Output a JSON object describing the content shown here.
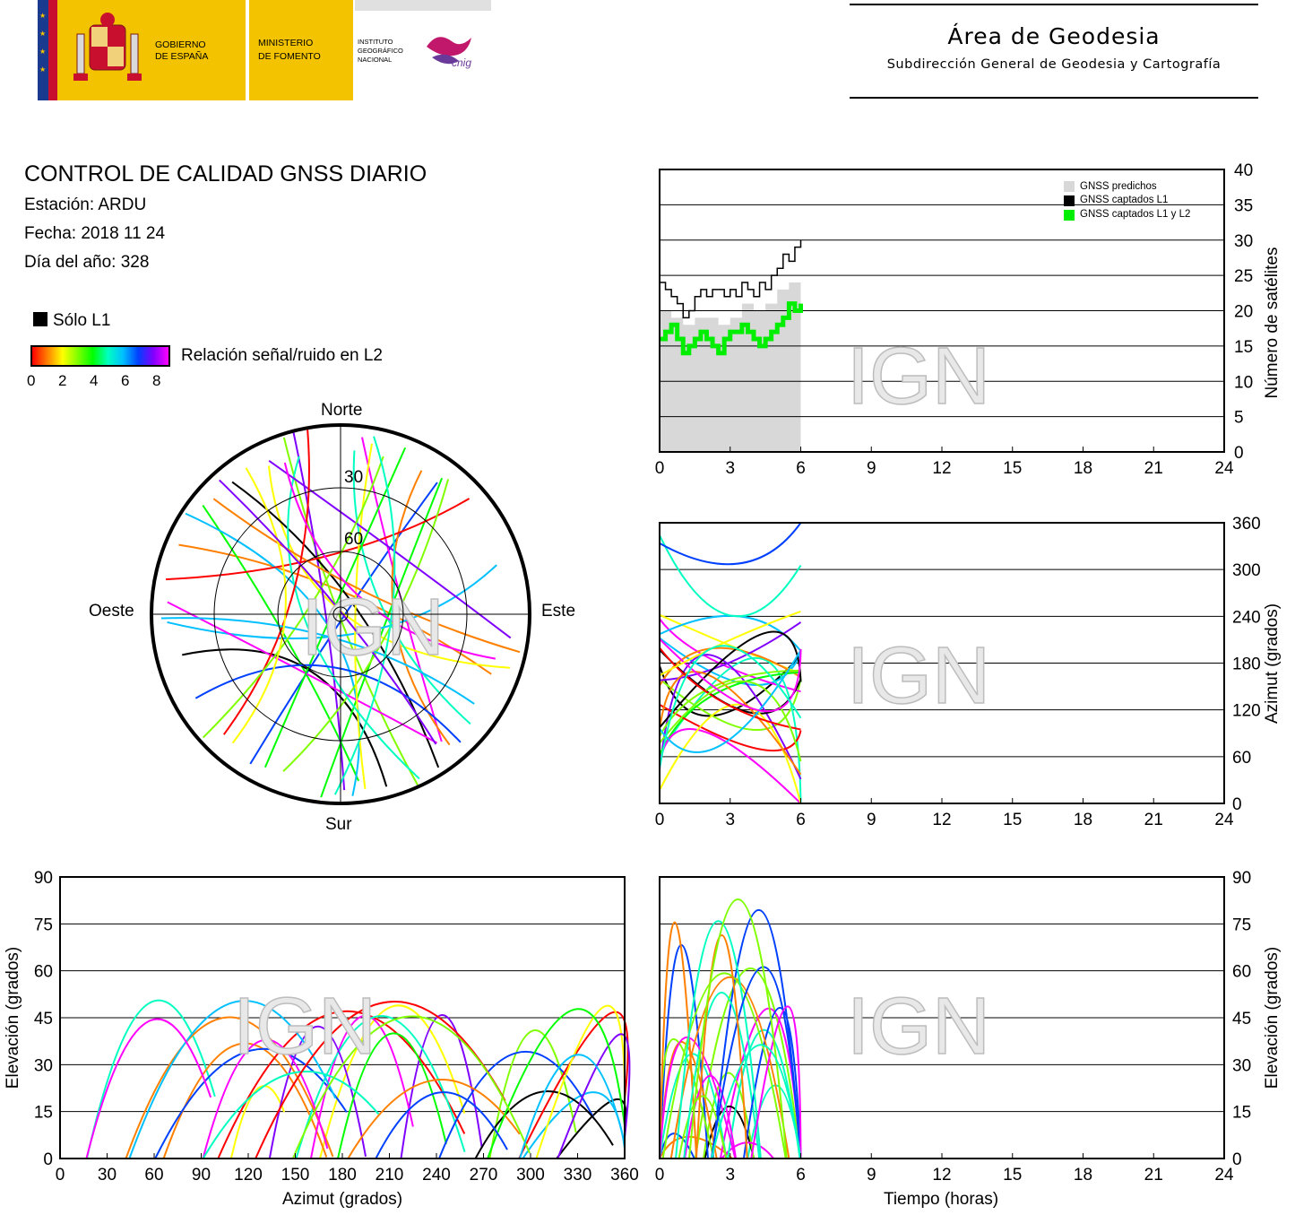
{
  "header": {
    "logo_line1": "GOBIERNO",
    "logo_line2": "DE ESPAÑA",
    "ministry_line1": "MINISTERIO",
    "ministry_line2": "DE FOMENTO",
    "institute_line1": "INSTITUTO",
    "institute_line2": "GEOGRÁFICO",
    "institute_line3": "NACIONAL",
    "cnig": "cnig",
    "title": "Área de Geodesia",
    "subtitle": "Subdirección General de Geodesia y Cartografía"
  },
  "info": {
    "title": "CONTROL DE CALIDAD GNSS DIARIO",
    "station": "Estación: ARDU",
    "date": "Fecha: 2018 11 24",
    "doy": "Día del año: 328"
  },
  "legend": {
    "l1_only": "Sólo L1",
    "snr_label": "Relación señal/ruido en L2",
    "snr_ticks": [
      "0",
      "2",
      "4",
      "6",
      "8"
    ]
  },
  "watermark": "IGN",
  "colors": {
    "l1_only": "#000000",
    "predicted": "#d8d8d8",
    "captured_l1": "#000000",
    "captured_l1_l2": "#00ee00",
    "snr_scale": [
      "#ff0000",
      "#ff8000",
      "#ffff00",
      "#80ff00",
      "#00ff00",
      "#00ffc0",
      "#00c0ff",
      "#0040ff",
      "#8000ff",
      "#ff00ff"
    ]
  },
  "chart_data": [
    {
      "id": "sky-plot",
      "type": "scatter",
      "title": "",
      "directions": {
        "north": "Norte",
        "south": "Sur",
        "east": "Este",
        "west": "Oeste"
      },
      "elevation_rings": [
        "30",
        "60"
      ],
      "tracks_note": ""
    },
    {
      "id": "satellite-count",
      "type": "area",
      "xlabel": "",
      "ylabel": "Número de satélites",
      "xlim": [
        0,
        24
      ],
      "ylim": [
        0,
        40
      ],
      "x_ticks": [
        "0",
        "3",
        "6",
        "9",
        "12",
        "15",
        "18",
        "21",
        "24"
      ],
      "y_ticks": [
        "0",
        "5",
        "10",
        "15",
        "20",
        "25",
        "30",
        "35",
        "40"
      ],
      "legend_position": "top-right",
      "series": [
        {
          "name": "GNSS predichos",
          "x": [
            0,
            0.5,
            1,
            1.5,
            2,
            2.5,
            3,
            3.5,
            4,
            4.5,
            5,
            5.5,
            6
          ],
          "values": [
            20,
            19,
            18,
            19,
            19,
            18,
            19,
            21,
            20,
            21,
            23,
            24,
            24
          ]
        },
        {
          "name": "GNSS captados L1",
          "x": [
            0,
            0.25,
            0.5,
            0.75,
            1,
            1.25,
            1.5,
            1.75,
            2,
            2.25,
            2.5,
            2.75,
            3,
            3.25,
            3.5,
            3.75,
            4,
            4.25,
            4.5,
            4.75,
            5,
            5.25,
            5.5,
            5.75,
            6
          ],
          "values": [
            24,
            23,
            22,
            21,
            19,
            20,
            22,
            23,
            22,
            23,
            23,
            22,
            23,
            22,
            24,
            23,
            22,
            24,
            23,
            25,
            26,
            28,
            27,
            29,
            30
          ]
        },
        {
          "name": "GNSS captados L1 y L2",
          "x": [
            0,
            0.25,
            0.5,
            0.75,
            1,
            1.25,
            1.5,
            1.75,
            2,
            2.25,
            2.5,
            2.75,
            3,
            3.25,
            3.5,
            3.75,
            4,
            4.25,
            4.5,
            4.75,
            5,
            5.25,
            5.5,
            5.75,
            6
          ],
          "values": [
            16,
            17,
            18,
            16,
            14,
            15,
            16,
            17,
            16,
            15,
            14,
            16,
            17,
            17,
            18,
            17,
            16,
            15,
            16,
            17,
            18,
            19,
            21,
            20,
            21
          ]
        }
      ]
    },
    {
      "id": "azimuth-time",
      "type": "scatter",
      "xlabel": "",
      "ylabel": "Azimut (grados)",
      "xlim": [
        0,
        24
      ],
      "ylim": [
        0,
        360
      ],
      "x_ticks": [
        "0",
        "3",
        "6",
        "9",
        "12",
        "15",
        "18",
        "21",
        "24"
      ],
      "y_ticks": [
        "0",
        "60",
        "120",
        "180",
        "240",
        "300",
        "360"
      ]
    },
    {
      "id": "elevation-azimuth",
      "type": "scatter",
      "xlabel": "Azimut (grados)",
      "ylabel": "Elevación (grados)",
      "xlim": [
        0,
        360
      ],
      "ylim": [
        0,
        90
      ],
      "x_ticks": [
        "0",
        "30",
        "60",
        "90",
        "120",
        "150",
        "180",
        "210",
        "240",
        "270",
        "300",
        "330",
        "360"
      ],
      "y_ticks": [
        "0",
        "15",
        "30",
        "45",
        "60",
        "75",
        "90"
      ]
    },
    {
      "id": "elevation-time",
      "type": "scatter",
      "xlabel": "Tiempo (horas)",
      "ylabel": "Elevación (grados)",
      "xlim": [
        0,
        24
      ],
      "ylim": [
        0,
        90
      ],
      "x_ticks": [
        "0",
        "3",
        "6",
        "9",
        "12",
        "15",
        "18",
        "21",
        "24"
      ],
      "y_ticks": [
        "0",
        "15",
        "30",
        "45",
        "60",
        "75",
        "90"
      ]
    }
  ]
}
